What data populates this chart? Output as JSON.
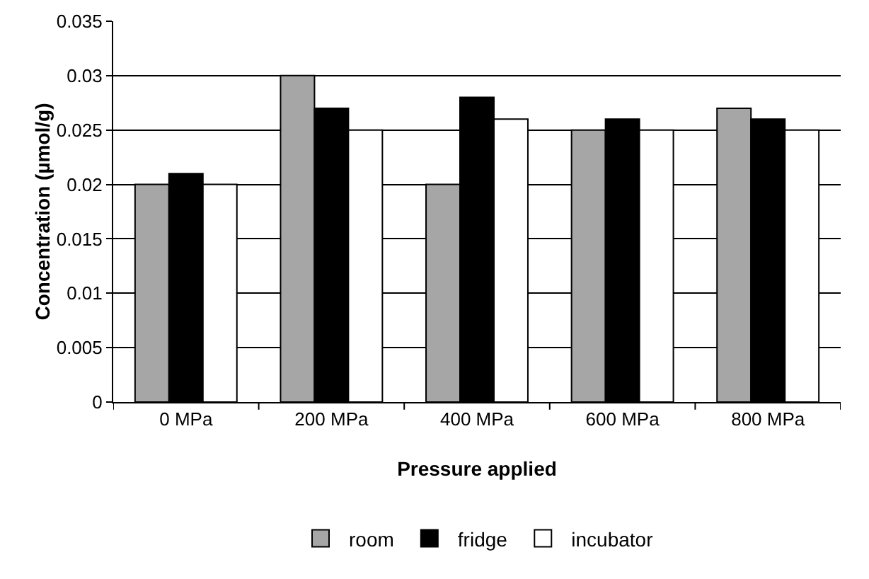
{
  "chart_data": {
    "type": "bar",
    "xlabel": "Pressure applied",
    "ylabel": "Concentration (µmol/g)",
    "categories": [
      "0 MPa",
      "200 MPa",
      "400 MPa",
      "600 MPa",
      "800 MPa"
    ],
    "series": [
      {
        "name": "room",
        "color": "#a6a6a6",
        "values": [
          0.02,
          0.03,
          0.02,
          0.025,
          0.027
        ]
      },
      {
        "name": "fridge",
        "color": "#000000",
        "values": [
          0.021,
          0.027,
          0.028,
          0.026,
          0.026
        ]
      },
      {
        "name": "incubator",
        "color": "#ffffff",
        "values": [
          0.02,
          0.025,
          0.026,
          0.025,
          0.025
        ]
      }
    ],
    "ylim": [
      0,
      0.035
    ],
    "yticks": [
      0,
      0.005,
      0.01,
      0.015,
      0.02,
      0.025,
      0.03,
      0.035
    ],
    "grid": "y",
    "legend": "bottom"
  }
}
